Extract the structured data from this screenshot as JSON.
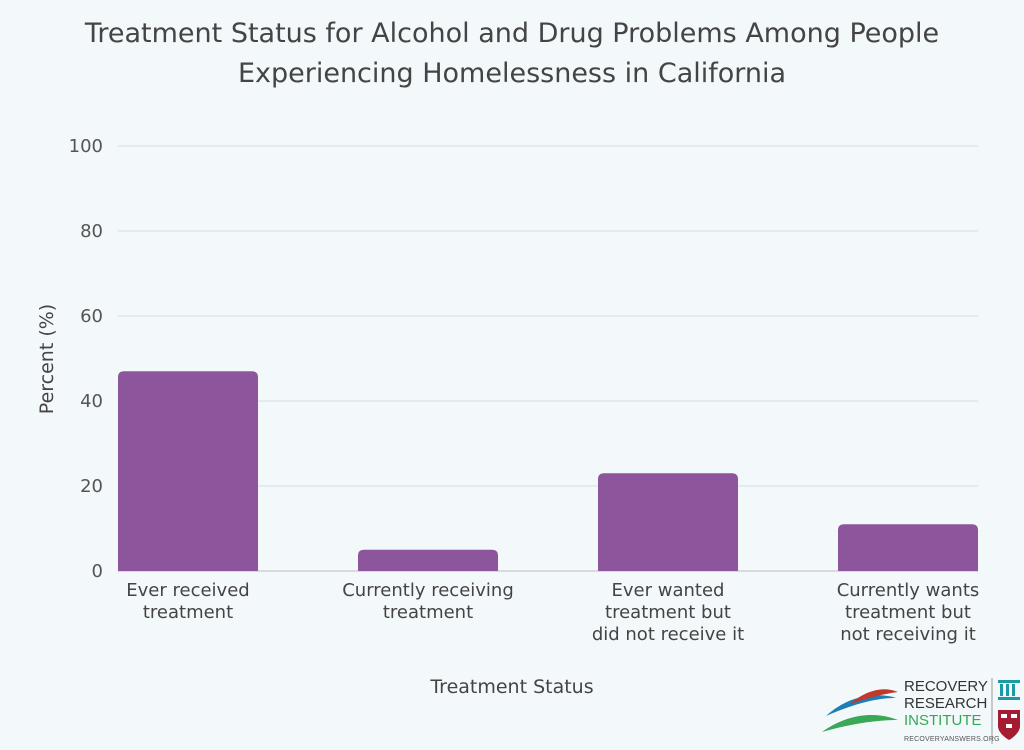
{
  "chart_data": {
    "type": "bar",
    "title_lines": [
      "Treatment Status for Alcohol and Drug Problems Among People",
      "Experiencing Homelessness in California"
    ],
    "xlabel": "Treatment Status",
    "ylabel": "Percent (%)",
    "ylim": [
      0,
      100
    ],
    "yticks": [
      0,
      20,
      40,
      60,
      80,
      100
    ],
    "grid": true,
    "categories": [
      [
        "Ever received",
        "treatment"
      ],
      [
        "Currently receiving",
        "treatment"
      ],
      [
        "Ever wanted",
        "treatment but",
        "did not receive it"
      ],
      [
        "Currently wants",
        "treatment but",
        "not receiving it"
      ]
    ],
    "values": [
      47,
      5,
      23,
      11
    ],
    "bar_color": "#8c559c"
  },
  "logo": {
    "lines": [
      "RECOVERY",
      "RESEARCH",
      "INSTITUTE"
    ],
    "url": "RECOVERYANSWERS.ORG"
  }
}
